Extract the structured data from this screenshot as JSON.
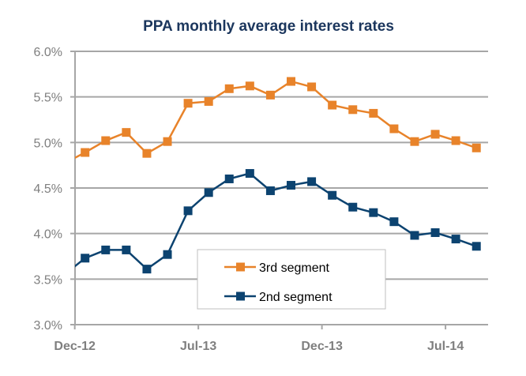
{
  "chart_data": {
    "type": "line",
    "title": "PPA monthly average interest rates",
    "xlabel": "",
    "ylabel": "",
    "ylim": [
      3.0,
      6.0
    ],
    "y_ticks": [
      3.0,
      3.5,
      4.0,
      4.5,
      5.0,
      5.5,
      6.0
    ],
    "y_tick_format": "percent_1dp",
    "x_tick_labels": [
      "Dec-12",
      "Jul-13",
      "Dec-13",
      "Jul-14"
    ],
    "grid": "horizontal",
    "legend_position": "bottom-center",
    "series": [
      {
        "name": "3rd segment",
        "color": "#e8832a",
        "marker": "square",
        "leading_clipped_value": 4.77,
        "values": [
          4.89,
          5.02,
          5.11,
          4.88,
          5.01,
          5.43,
          5.45,
          5.59,
          5.62,
          5.52,
          5.67,
          5.61,
          5.41,
          5.36,
          5.32,
          5.15,
          5.01,
          5.09,
          5.02,
          4.94
        ]
      },
      {
        "name": "2nd segment",
        "color": "#0c4370",
        "marker": "square",
        "leading_clipped_value": 3.55,
        "values": [
          3.73,
          3.82,
          3.82,
          3.61,
          3.77,
          4.25,
          4.45,
          4.6,
          4.66,
          4.47,
          4.53,
          4.57,
          4.42,
          4.29,
          4.23,
          4.13,
          3.98,
          4.01,
          3.94,
          3.86
        ]
      }
    ]
  }
}
